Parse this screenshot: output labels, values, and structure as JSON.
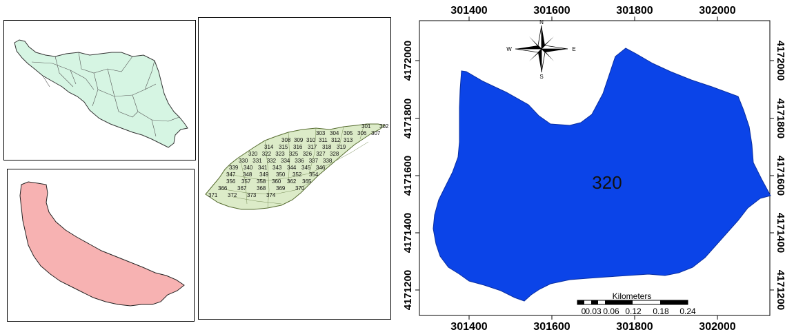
{
  "main_map": {
    "top_ticks": [
      "301400",
      "301600",
      "301800",
      "302000"
    ],
    "bottom_ticks": [
      "301400",
      "301600",
      "301800",
      "302000"
    ],
    "left_ticks": [
      "4172000",
      "4171800",
      "4171600",
      "4171400",
      "4171200"
    ],
    "right_ticks": [
      "4172000",
      "4171800",
      "4171600",
      "4171400",
      "4171200"
    ],
    "polygon_label": "320",
    "polygon_color": "#0b44e8"
  },
  "north_arrow": {
    "n": "N",
    "s": "S",
    "e": "E",
    "w": "W"
  },
  "scale_bar": {
    "title": "Kilometers",
    "labels": [
      "0",
      "0.03",
      "0.06",
      "0.12",
      "0.18",
      "0.24"
    ]
  },
  "iran_map": {
    "fill": "#d6f5e3"
  },
  "gilan_map": {
    "fill": "#f7b2b2"
  },
  "sub_map": {
    "fill": "#dcebc8",
    "labels": [
      "301",
      "302",
      "303",
      "304",
      "305",
      "306",
      "307",
      "308",
      "309",
      "310",
      "311",
      "312",
      "313",
      "314",
      "315",
      "316",
      "317",
      "318",
      "319",
      "320",
      "322",
      "323",
      "325",
      "326",
      "327",
      "328",
      "330",
      "331",
      "332",
      "334",
      "336",
      "337",
      "338",
      "339",
      "340",
      "341",
      "343",
      "344",
      "345",
      "346",
      "347",
      "348",
      "349",
      "350",
      "352",
      "354",
      "356",
      "357",
      "358",
      "360",
      "362",
      "365",
      "366",
      "367",
      "368",
      "369",
      "370",
      "371",
      "372",
      "373",
      "374"
    ]
  }
}
